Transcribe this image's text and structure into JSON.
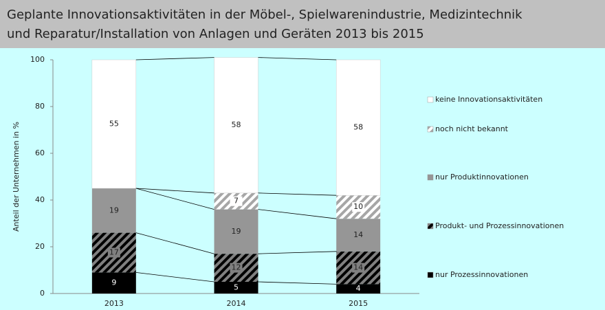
{
  "chart_data": {
    "type": "stacked_bar",
    "title": [
      "Geplante Innovationsaktivitäten in der Möbel-, Spielwarenindustrie, Medizintechnik",
      "und Reparatur/Installation von Anlagen und Geräten 2013 bis 2015"
    ],
    "y_label": "Anteil der Unternehmen in %",
    "categories": [
      "2013",
      "2014",
      "2015"
    ],
    "series": [
      {
        "name": "nur Prozessinnovationen",
        "color": "#000000",
        "values": [
          9,
          5,
          4
        ]
      },
      {
        "name": "Produkt- und Prozessinnovationen",
        "color": "#808080",
        "hatch": "#000000",
        "values": [
          17,
          12,
          14
        ]
      },
      {
        "name": "nur Produktinnovationen",
        "color": "#969696",
        "values": [
          19,
          19,
          14
        ]
      },
      {
        "name": "noch nicht bekannt",
        "color": "#ffffff",
        "hatch": "#a6a6a6",
        "values": [
          null,
          7,
          10
        ]
      },
      {
        "name": "keine Innovationsaktivitäten",
        "color": "#ffffff",
        "values": [
          55,
          58,
          58
        ]
      }
    ],
    "ylim": [
      0,
      100
    ],
    "yticks": [
      0,
      20,
      40,
      60,
      80,
      100
    ],
    "series_lines": true
  }
}
